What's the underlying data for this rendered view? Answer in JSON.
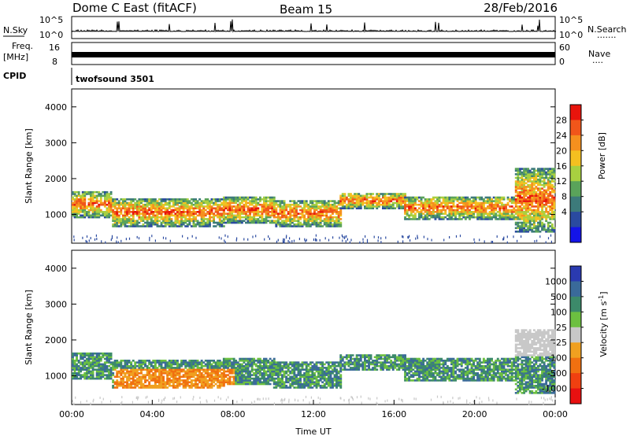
{
  "header": {
    "station": "Dome C East (fitACF)",
    "beam": "Beam 15",
    "date": "28/Feb/2016"
  },
  "strips": {
    "nsky_label": "N.Sky",
    "nsearch_label": "N.Search",
    "nsearch_dots": "·······",
    "freq_label": "Freq.",
    "freq_unit": "[MHz]",
    "nave_label": "Nave",
    "nave_dots": "····",
    "cpid_label": "CPID",
    "cpid_value": "twofsound 3501",
    "nsky_ticks": [
      "10^5",
      "10^0"
    ],
    "nsearch_ticks": [
      "10^5",
      "10^0"
    ],
    "freq_ticks": [
      "16",
      "8"
    ],
    "nave_ticks": [
      "60",
      "0"
    ]
  },
  "chart_data": [
    {
      "type": "heatmap",
      "panel": "power",
      "ylabel": "Slant Range [km]",
      "xlabel": "",
      "ylim": [
        200,
        4500
      ],
      "yticks": [
        1000,
        2000,
        3000,
        4000
      ],
      "xlim": [
        0,
        24
      ],
      "colorbar_label": "Power [dB]",
      "colorbar_ticks": [
        "28",
        "24",
        "20",
        "16",
        "12",
        "8",
        "4"
      ],
      "colorbar_colors": [
        "#e8140c",
        "#f0561a",
        "#f5901e",
        "#f4c020",
        "#a8d040",
        "#5aa35a",
        "#3c7a7a",
        "#2a4aa0",
        "#1414e8"
      ],
      "echo_bands": [
        {
          "t0": 0.0,
          "t1": 2.0,
          "r0": 900,
          "r1": 1650
        },
        {
          "t0": 2.0,
          "t1": 7.5,
          "r0": 650,
          "r1": 1450
        },
        {
          "t0": 7.5,
          "t1": 10.0,
          "r0": 750,
          "r1": 1500
        },
        {
          "t0": 10.0,
          "t1": 13.3,
          "r0": 650,
          "r1": 1400
        },
        {
          "t0": 13.3,
          "t1": 16.5,
          "r0": 1150,
          "r1": 1600
        },
        {
          "t0": 16.5,
          "t1": 22.0,
          "r0": 850,
          "r1": 1500
        },
        {
          "t0": 22.0,
          "t1": 24.0,
          "r0": 500,
          "r1": 2300
        }
      ]
    },
    {
      "type": "heatmap",
      "panel": "velocity",
      "ylabel": "Slant Range [km]",
      "xlabel": "Time UT",
      "ylim": [
        200,
        4500
      ],
      "yticks": [
        1000,
        2000,
        3000,
        4000
      ],
      "xlim": [
        0,
        24
      ],
      "xticks": [
        "00:00",
        "04:00",
        "08:00",
        "12:00",
        "16:00",
        "20:00",
        "00:00"
      ],
      "colorbar_label": "Velocity [m s^-1]",
      "colorbar_ticks": [
        "1000",
        "500",
        "100",
        "25",
        "-25",
        "-100",
        "-500",
        "-1000"
      ],
      "colorbar_colors": [
        "#2a3ab0",
        "#3a6a9a",
        "#3c8a6a",
        "#6cc040",
        "#c8c8c8",
        "#f0a020",
        "#f07010",
        "#f04010",
        "#e81010"
      ],
      "echo_bands": [
        {
          "t0": 0.0,
          "t1": 2.0,
          "r0": 900,
          "r1": 1650
        },
        {
          "t0": 2.0,
          "t1": 7.5,
          "r0": 650,
          "r1": 1450
        },
        {
          "t0": 7.5,
          "t1": 10.0,
          "r0": 750,
          "r1": 1500
        },
        {
          "t0": 10.0,
          "t1": 13.3,
          "r0": 650,
          "r1": 1400
        },
        {
          "t0": 13.3,
          "t1": 16.5,
          "r0": 1150,
          "r1": 1600
        },
        {
          "t0": 16.5,
          "t1": 22.0,
          "r0": 850,
          "r1": 1500
        },
        {
          "t0": 22.0,
          "t1": 24.0,
          "r0": 500,
          "r1": 2300
        }
      ]
    }
  ]
}
